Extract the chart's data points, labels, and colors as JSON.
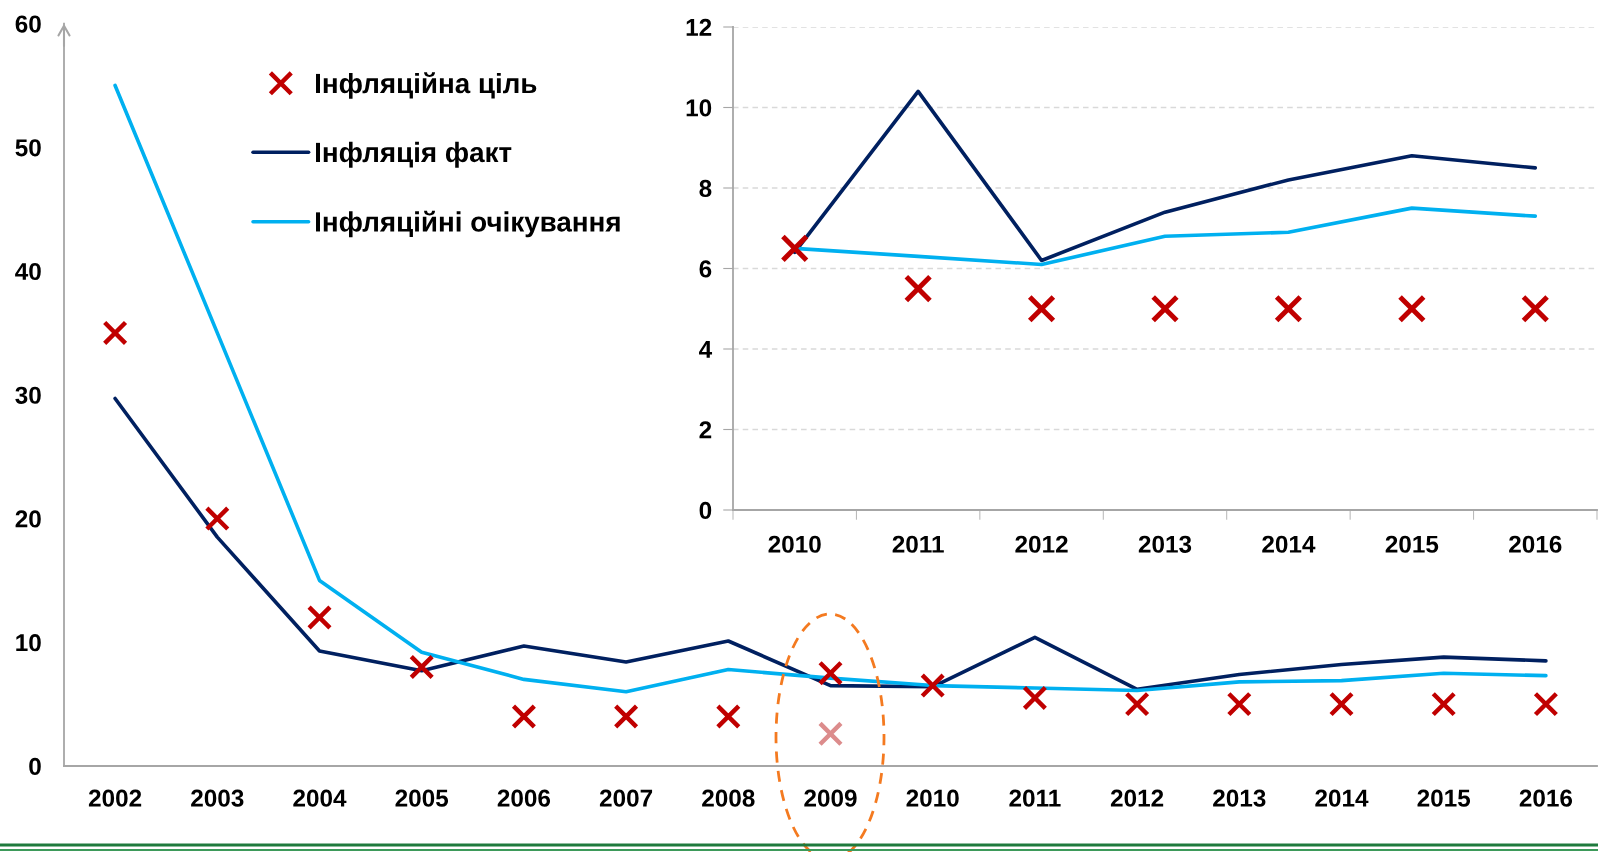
{
  "chart_data": [
    {
      "type": "line",
      "categories": [
        "2002",
        "2003",
        "2004",
        "2005",
        "2006",
        "2007",
        "2008",
        "2009",
        "2010",
        "2011",
        "2012",
        "2013",
        "2014",
        "2015",
        "2016"
      ],
      "ylim": [
        0,
        60
      ],
      "yticks": [
        0,
        10,
        20,
        30,
        40,
        50,
        60
      ],
      "legend": "top left",
      "series": [
        {
          "name": "Інфляційна ціль",
          "type": "scatter",
          "marker": "cross",
          "color": "#c00000",
          "values": [
            35,
            20,
            12,
            8,
            4,
            4,
            4,
            7.5,
            6.5,
            5.5,
            5,
            5,
            5,
            5,
            5
          ]
        },
        {
          "name": "Інфляція факт",
          "color": "#002060",
          "values": [
            29.7,
            18.5,
            9.3,
            7.7,
            9.7,
            8.4,
            10.1,
            6.5,
            6.4,
            10.4,
            6.2,
            7.4,
            8.2,
            8.8,
            8.5
          ]
        },
        {
          "name": "Інфляційні очікування",
          "color": "#00b0f0",
          "values": [
            55,
            35,
            15,
            9.2,
            7,
            6,
            7.8,
            7.1,
            6.5,
            6.3,
            6.1,
            6.8,
            6.9,
            7.5,
            7.3
          ]
        },
        {
          "type": "scatter",
          "marker": "cross",
          "color": "#dc8c8c",
          "values": [
            null,
            null,
            null,
            null,
            null,
            null,
            null,
            2.6,
            null,
            null,
            null,
            null,
            null,
            null,
            null
          ]
        }
      ]
    },
    {
      "type": "line",
      "categories": [
        "2010",
        "2011",
        "2012",
        "2013",
        "2014",
        "2015",
        "2016"
      ],
      "ylim": [
        0,
        12
      ],
      "yticks": [
        0,
        2,
        4,
        6,
        8,
        10,
        12
      ],
      "grid": "y",
      "series": [
        {
          "color": "#002060",
          "values": [
            6.4,
            10.4,
            6.2,
            7.4,
            8.2,
            8.8,
            8.5
          ]
        },
        {
          "color": "#00b0f0",
          "values": [
            6.5,
            6.3,
            6.1,
            6.8,
            6.9,
            7.5,
            7.3
          ]
        },
        {
          "type": "scatter",
          "marker": "cross",
          "color": "#c00000",
          "values": [
            6.5,
            5.5,
            5,
            5,
            5,
            5,
            5
          ]
        }
      ]
    }
  ]
}
